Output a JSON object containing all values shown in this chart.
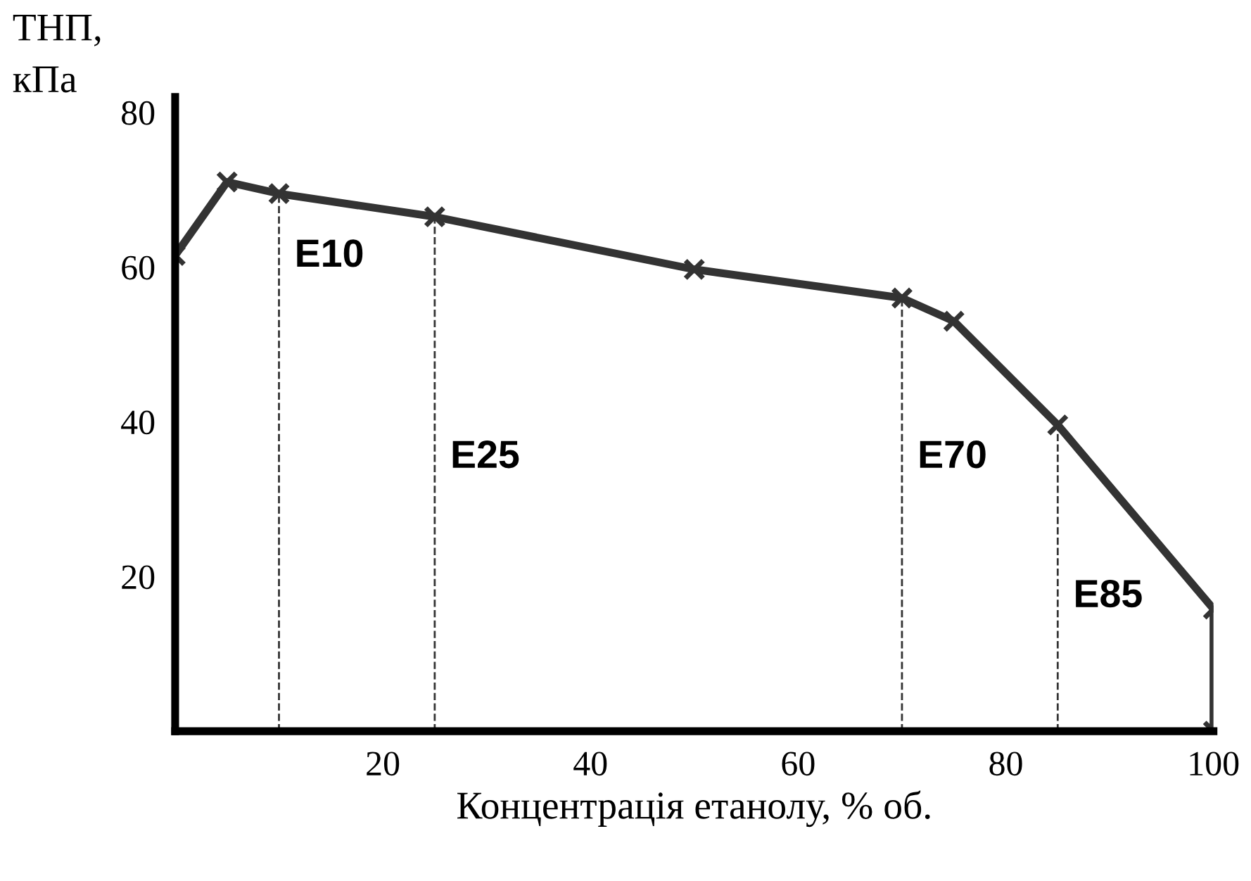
{
  "chart_data": {
    "type": "line",
    "xlabel": "Концентрація етанолу, % об.",
    "ylabel": "ТНП,\nкПа",
    "x": [
      0,
      5,
      10,
      25,
      50,
      70,
      75,
      85,
      100,
      100
    ],
    "series": [
      {
        "color": "#333333",
        "values": [
          61.5,
          71,
          69.5,
          66.5,
          59.7,
          56,
          53,
          39.6,
          15.8,
          0
        ]
      }
    ],
    "marker": "cross",
    "xlim": [
      0,
      100
    ],
    "xticks": [
      20,
      40,
      60,
      80,
      100
    ],
    "ylim": [
      0,
      82
    ],
    "yticks": [
      20,
      40,
      60,
      80
    ],
    "grid": false,
    "ref_lines": [
      {
        "axis": "x",
        "value": 10,
        "line_style": "dashed",
        "color": "#333333"
      },
      {
        "axis": "x",
        "value": 25,
        "line_style": "dashed",
        "color": "#333333"
      },
      {
        "axis": "x",
        "value": 70,
        "line_style": "dashed",
        "color": "#333333"
      },
      {
        "axis": "x",
        "value": 85,
        "line_style": "dashed",
        "color": "#333333"
      }
    ],
    "annotations": [
      {
        "text": "E10",
        "x": 10,
        "y": 59
      },
      {
        "text": "E25",
        "x": 25,
        "y": 33
      },
      {
        "text": "E70",
        "x": 70,
        "y": 33
      },
      {
        "text": "E85",
        "x": 85,
        "y": 15
      }
    ]
  }
}
